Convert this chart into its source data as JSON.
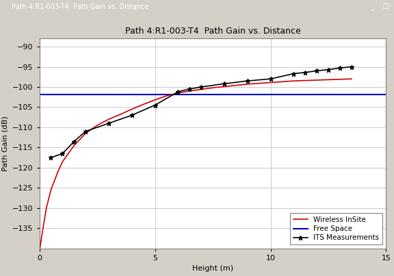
{
  "title": "Path 4:R1-003-T4  Path Gain vs. Distance",
  "window_title": "Path 4:R1-003-T4  Path Gain vs. Distance",
  "xlabel": "Height (m)",
  "ylabel": "Path Gain (dB)",
  "xlim": [
    0,
    15
  ],
  "ylim": [
    -140,
    -88
  ],
  "yticks": [
    -90,
    -95,
    -100,
    -105,
    -110,
    -115,
    -120,
    -125,
    -130,
    -135
  ],
  "xticks": [
    0,
    5,
    10,
    15
  ],
  "free_space_y": -101.8,
  "wireless_insite_x": [
    0.02,
    0.1,
    0.3,
    0.5,
    0.8,
    1.0,
    1.5,
    2.0,
    2.5,
    3.0,
    3.5,
    4.0,
    4.5,
    5.0,
    5.5,
    6.0,
    6.5,
    7.0,
    7.5,
    8.0,
    8.5,
    9.0,
    9.5,
    10.0,
    10.5,
    11.0,
    11.5,
    12.0,
    12.5,
    13.0,
    13.5
  ],
  "wireless_insite_y": [
    -140.0,
    -137.0,
    -130.0,
    -125.5,
    -121.0,
    -118.5,
    -114.5,
    -111.5,
    -109.5,
    -108.0,
    -106.8,
    -105.5,
    -104.3,
    -103.2,
    -102.2,
    -101.5,
    -101.0,
    -100.6,
    -100.2,
    -99.9,
    -99.6,
    -99.3,
    -99.1,
    -98.9,
    -98.7,
    -98.5,
    -98.4,
    -98.3,
    -98.2,
    -98.1,
    -98.0
  ],
  "its_x": [
    0.5,
    1.0,
    1.5,
    2.0,
    3.0,
    4.0,
    5.0,
    6.0,
    6.5,
    7.0,
    8.0,
    9.0,
    10.0,
    11.0,
    11.5,
    12.0,
    12.5,
    13.0,
    13.5
  ],
  "its_y": [
    -117.5,
    -116.5,
    -113.5,
    -111.0,
    -109.0,
    -107.0,
    -104.5,
    -101.2,
    -100.5,
    -100.0,
    -99.2,
    -98.5,
    -98.0,
    -96.7,
    -96.4,
    -96.0,
    -95.7,
    -95.3,
    -95.0
  ],
  "bg_color": "#d4d0c8",
  "plot_bg_color": "#ffffff",
  "titlebar_color": "#0a246a",
  "titlebar_text_color": "#ffffff",
  "wireless_color": "#cc0000",
  "free_space_color": "#0000cc",
  "its_color": "#000000",
  "legend_fontsize": 7.5,
  "title_fontsize": 9,
  "axis_fontsize": 8,
  "tick_fontsize": 8
}
